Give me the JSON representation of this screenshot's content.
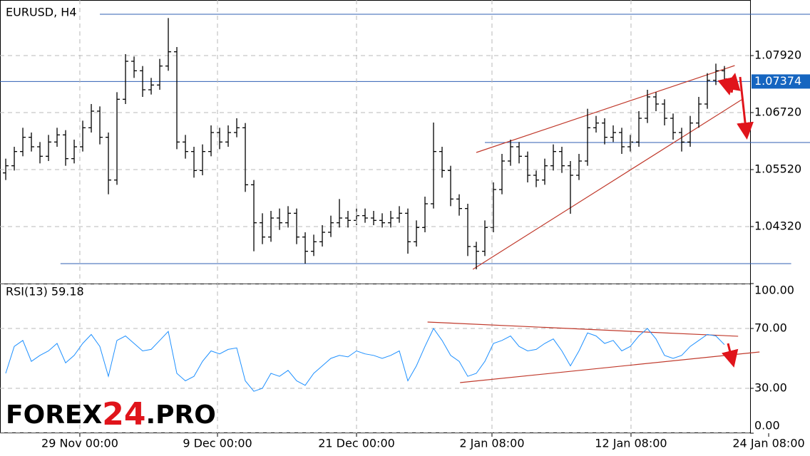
{
  "chart_data": [
    {
      "type": "ohlc",
      "title": "EURUSD, H4",
      "color": "#000000",
      "xlim": [
        -0.67,
        87
      ],
      "ylim": [
        1.0312,
        1.0909
      ],
      "yticks": [
        {
          "value": 1.0792,
          "label": "1.07920"
        },
        {
          "value": 1.0672,
          "label": "1.06720"
        },
        {
          "value": 1.0552,
          "label": "1.05520"
        },
        {
          "value": 1.0432,
          "label": "1.04320"
        }
      ],
      "grid": true,
      "current_price": 1.07374,
      "levels": [
        {
          "y": 1.0879,
          "x0": 11,
          "x1": 94
        },
        {
          "y": 1.0609,
          "x0": 56,
          "x1": 94
        },
        {
          "y": 1.0354,
          "x0": 6.4,
          "x1": 91.8
        }
      ],
      "level_color": "#2f5fb3",
      "trend_lines": [
        {
          "x": [
            55.0,
            85.2
          ],
          "y": [
            1.0588,
            1.0771
          ]
        },
        {
          "x": [
            54.6,
            86.0
          ],
          "y": [
            1.0342,
            1.0699
          ]
        }
      ],
      "trend_color": "#c0392b",
      "x": [
        0,
        1,
        2,
        3,
        4,
        5,
        6,
        7,
        8,
        9,
        10,
        11,
        12,
        13,
        14,
        15,
        16,
        17,
        18,
        19,
        20,
        21,
        22,
        23,
        24,
        25,
        26,
        27,
        28,
        29,
        30,
        31,
        32,
        33,
        34,
        35,
        36,
        37,
        38,
        39,
        40,
        41,
        42,
        43,
        44,
        45,
        46,
        47,
        48,
        49,
        50,
        51,
        52,
        53,
        54,
        55,
        56,
        57,
        58,
        59,
        60,
        61,
        62,
        63,
        64,
        65,
        66,
        67,
        68,
        69,
        70,
        71,
        72,
        73,
        74,
        75,
        76,
        77,
        78,
        79,
        80,
        81,
        82,
        83,
        84
      ],
      "open": [
        1.0545,
        1.056,
        1.059,
        1.062,
        1.06,
        1.058,
        1.061,
        1.0625,
        1.0575,
        1.06,
        1.064,
        1.0675,
        1.062,
        1.053,
        1.07,
        1.078,
        1.076,
        1.072,
        1.073,
        1.077,
        1.08,
        1.061,
        1.059,
        1.055,
        1.059,
        1.063,
        1.061,
        1.063,
        1.064,
        1.052,
        1.044,
        1.041,
        1.045,
        1.044,
        1.046,
        1.041,
        1.038,
        1.04,
        1.042,
        1.044,
        1.045,
        1.0445,
        1.0455,
        1.045,
        1.0445,
        1.044,
        1.045,
        1.046,
        1.04,
        1.043,
        1.048,
        1.059,
        1.055,
        1.049,
        1.047,
        1.039,
        1.038,
        1.043,
        1.051,
        1.057,
        1.06,
        1.058,
        1.054,
        1.053,
        1.056,
        1.059,
        1.056,
        1.054,
        1.057,
        1.064,
        1.065,
        1.062,
        1.063,
        1.06,
        1.061,
        1.066,
        1.0705,
        1.069,
        1.066,
        1.063,
        1.061,
        1.065,
        1.069,
        1.074,
        1.076
      ],
      "high": [
        1.0575,
        1.06,
        1.064,
        1.063,
        1.061,
        1.0625,
        1.064,
        1.0635,
        1.0615,
        1.0655,
        1.069,
        1.0685,
        1.063,
        1.0715,
        1.0795,
        1.079,
        1.077,
        1.0745,
        1.0785,
        1.0871,
        1.081,
        1.0625,
        1.06,
        1.0605,
        1.0645,
        1.064,
        1.0645,
        1.066,
        1.065,
        1.053,
        1.046,
        1.0465,
        1.047,
        1.0475,
        1.047,
        1.042,
        1.0415,
        1.0435,
        1.0455,
        1.049,
        1.0465,
        1.047,
        1.047,
        1.0465,
        1.046,
        1.0465,
        1.0475,
        1.047,
        1.0445,
        1.0495,
        1.0651,
        1.06,
        1.056,
        1.05,
        1.048,
        1.04,
        1.0445,
        1.0525,
        1.0585,
        1.0615,
        1.061,
        1.059,
        1.055,
        1.0575,
        1.0605,
        1.06,
        1.057,
        1.0585,
        1.068,
        1.0665,
        1.066,
        1.0645,
        1.064,
        1.0625,
        1.0675,
        1.072,
        1.0715,
        1.07,
        1.067,
        1.064,
        1.0665,
        1.0705,
        1.0755,
        1.0775,
        1.077
      ],
      "low": [
        1.053,
        1.055,
        1.058,
        1.059,
        1.0565,
        1.057,
        1.06,
        1.056,
        1.0565,
        1.059,
        1.063,
        1.0605,
        1.05,
        1.052,
        1.069,
        1.0745,
        1.0705,
        1.071,
        1.072,
        1.076,
        1.0595,
        1.0575,
        1.0535,
        1.054,
        1.058,
        1.0595,
        1.06,
        1.062,
        1.0505,
        1.038,
        1.0395,
        1.04,
        1.0425,
        1.043,
        1.0395,
        1.0354,
        1.037,
        1.039,
        1.041,
        1.043,
        1.043,
        1.0435,
        1.044,
        1.0435,
        1.043,
        1.043,
        1.044,
        1.0375,
        1.039,
        1.042,
        1.047,
        1.0535,
        1.0475,
        1.0455,
        1.037,
        1.0342,
        1.037,
        1.042,
        1.05,
        1.056,
        1.0565,
        1.0525,
        1.0515,
        1.052,
        1.055,
        1.0545,
        1.0459,
        1.053,
        1.056,
        1.063,
        1.0605,
        1.061,
        1.0585,
        1.059,
        1.06,
        1.065,
        1.0675,
        1.0645,
        1.0615,
        1.059,
        1.06,
        1.064,
        1.068,
        1.073,
        1.0725
      ],
      "close": [
        1.056,
        1.059,
        1.062,
        1.06,
        1.058,
        1.061,
        1.0625,
        1.0575,
        1.06,
        1.064,
        1.0675,
        1.062,
        1.053,
        1.07,
        1.078,
        1.076,
        1.072,
        1.073,
        1.077,
        1.08,
        1.061,
        1.059,
        1.055,
        1.059,
        1.063,
        1.061,
        1.063,
        1.064,
        1.052,
        1.044,
        1.041,
        1.045,
        1.044,
        1.046,
        1.041,
        1.038,
        1.04,
        1.042,
        1.044,
        1.045,
        1.0445,
        1.0455,
        1.045,
        1.0445,
        1.044,
        1.045,
        1.046,
        1.04,
        1.043,
        1.048,
        1.059,
        1.055,
        1.049,
        1.047,
        1.039,
        1.038,
        1.043,
        1.051,
        1.057,
        1.06,
        1.058,
        1.054,
        1.053,
        1.056,
        1.059,
        1.056,
        1.054,
        1.057,
        1.064,
        1.065,
        1.062,
        1.063,
        1.06,
        1.061,
        1.066,
        1.0705,
        1.069,
        1.066,
        1.063,
        1.061,
        1.065,
        1.069,
        1.074,
        1.076,
        1.07374
      ]
    },
    {
      "type": "line",
      "title": "RSI(13) 59.18",
      "color": "#1e90ff",
      "xlim": [
        -0.67,
        87
      ],
      "ylim": [
        0,
        100
      ],
      "yticks": [
        {
          "value": 100,
          "label": "100.00"
        },
        {
          "value": 70,
          "label": "70.00"
        },
        {
          "value": 30,
          "label": "30.00"
        },
        {
          "value": 0,
          "label": "0.00"
        }
      ],
      "xticks": [
        {
          "value": 8.66,
          "label": "29 Nov 00:00"
        },
        {
          "value": 24.75,
          "label": "9 Dec 00:00"
        },
        {
          "value": 41,
          "label": "21 Dec 00:00"
        },
        {
          "value": 56.83,
          "label": "2 Jan 08:00"
        },
        {
          "value": 73.08,
          "label": "12 Jan 08:00"
        },
        {
          "value": 89.17,
          "label": "24 Jan 08:00"
        }
      ],
      "grid": true,
      "trend_lines": [
        {
          "x": [
            49.3,
            85.6
          ],
          "y": [
            74.3,
            64.8
          ]
        },
        {
          "x": [
            53.1,
            88.1
          ],
          "y": [
            33.8,
            54.3
          ]
        }
      ],
      "trend_color": "#c0392b",
      "x": [
        0,
        1,
        2,
        3,
        4,
        5,
        6,
        7,
        8,
        9,
        10,
        11,
        12,
        13,
        14,
        15,
        16,
        17,
        18,
        19,
        20,
        21,
        22,
        23,
        24,
        25,
        26,
        27,
        28,
        29,
        30,
        31,
        32,
        33,
        34,
        35,
        36,
        37,
        38,
        39,
        40,
        41,
        42,
        43,
        44,
        45,
        46,
        47,
        48,
        49,
        50,
        51,
        52,
        53,
        54,
        55,
        56,
        57,
        58,
        59,
        60,
        61,
        62,
        63,
        64,
        65,
        66,
        67,
        68,
        69,
        70,
        71,
        72,
        73,
        74,
        75,
        76,
        77,
        78,
        79,
        80,
        81,
        82,
        83,
        84
      ],
      "values": [
        40,
        58,
        62,
        48,
        52,
        55,
        60,
        47,
        52,
        60,
        66,
        58,
        38,
        62,
        65,
        60,
        55,
        56,
        62,
        68,
        40,
        35,
        38,
        48,
        55,
        53,
        56,
        57,
        35,
        28,
        30,
        40,
        38,
        42,
        35,
        32,
        40,
        45,
        50,
        52,
        51,
        55,
        53,
        52,
        50,
        52,
        55,
        35,
        45,
        58,
        70,
        62,
        52,
        48,
        38,
        40,
        48,
        60,
        62,
        65,
        58,
        55,
        56,
        60,
        63,
        55,
        45,
        55,
        67,
        65,
        60,
        62,
        55,
        58,
        65,
        70,
        63,
        52,
        50,
        52,
        58,
        62,
        66,
        65,
        59.18
      ]
    }
  ],
  "watermark": {
    "a": "FOREX",
    "b": "24",
    "c": ".PRO"
  }
}
